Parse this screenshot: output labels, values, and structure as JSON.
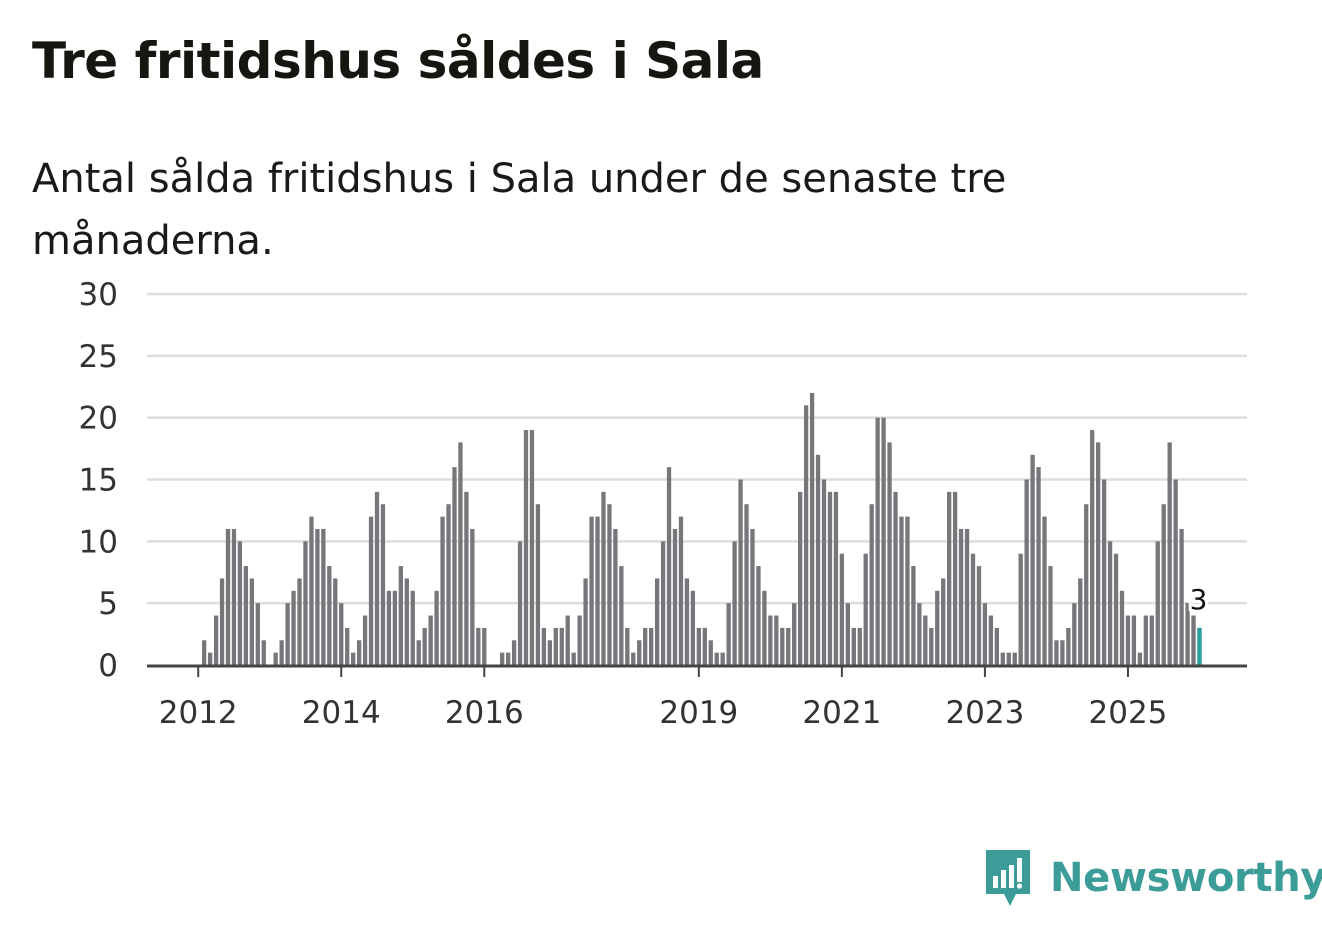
{
  "header": {
    "title": "Tre fritidshus såldes i Sala",
    "subtitle": "Antal sålda fritidshus i Sala under de senaste tre månaderna."
  },
  "brand": {
    "name": "Newsworthy",
    "color": "#3c9c98"
  },
  "colors": {
    "bar": "#77767a",
    "highlight": "#2aa3a0",
    "grid": "#dddddd",
    "axis": "#444444"
  },
  "chart_data": {
    "type": "bar",
    "title": "Tre fritidshus såldes i Sala",
    "subtitle": "Antal sålda fritidshus i Sala under de senaste tre månaderna.",
    "xlabel": "",
    "ylabel": "",
    "ylim": [
      0,
      30
    ],
    "yticks": [
      0,
      5,
      10,
      15,
      20,
      25,
      30
    ],
    "grid": true,
    "legend": "none",
    "x_start": "2011-03",
    "x_unit": "month",
    "x_ticks": [
      {
        "label": "2012",
        "date": "2012-01"
      },
      {
        "label": "2014",
        "date": "2014-01"
      },
      {
        "label": "2016",
        "date": "2016-01"
      },
      {
        "label": "2019",
        "date": "2019-01"
      },
      {
        "label": "2021",
        "date": "2021-01"
      },
      {
        "label": "2023",
        "date": "2023-01"
      },
      {
        "label": "2025",
        "date": "2025-01"
      }
    ],
    "values": [
      0,
      0,
      0,
      0,
      0,
      0,
      0,
      0,
      0,
      0,
      0,
      2,
      1,
      4,
      7,
      11,
      11,
      10,
      8,
      7,
      5,
      2,
      0,
      1,
      2,
      5,
      6,
      7,
      10,
      12,
      11,
      11,
      8,
      7,
      5,
      3,
      1,
      2,
      4,
      12,
      14,
      13,
      6,
      6,
      8,
      7,
      6,
      2,
      3,
      4,
      6,
      12,
      13,
      16,
      18,
      14,
      11,
      3,
      3,
      0,
      0,
      1,
      1,
      2,
      10,
      19,
      19,
      13,
      3,
      2,
      3,
      3,
      4,
      1,
      4,
      7,
      12,
      12,
      14,
      13,
      11,
      8,
      3,
      1,
      2,
      3,
      3,
      7,
      10,
      16,
      11,
      12,
      7,
      6,
      3,
      3,
      2,
      1,
      1,
      5,
      10,
      15,
      13,
      11,
      8,
      6,
      4,
      4,
      3,
      3,
      5,
      14,
      21,
      22,
      17,
      15,
      14,
      14,
      9,
      5,
      3,
      3,
      9,
      13,
      20,
      20,
      18,
      14,
      12,
      12,
      8,
      5,
      4,
      3,
      6,
      7,
      14,
      14,
      11,
      11,
      9,
      8,
      5,
      4,
      3,
      1,
      1,
      1,
      9,
      15,
      17,
      16,
      12,
      8,
      2,
      2,
      3,
      5,
      7,
      13,
      19,
      18,
      15,
      10,
      9,
      6,
      4,
      4,
      1,
      4,
      4,
      10,
      13,
      18,
      15,
      11,
      5,
      4,
      3
    ],
    "highlight": {
      "date": "2026-01",
      "value": 3,
      "label": "3"
    }
  }
}
